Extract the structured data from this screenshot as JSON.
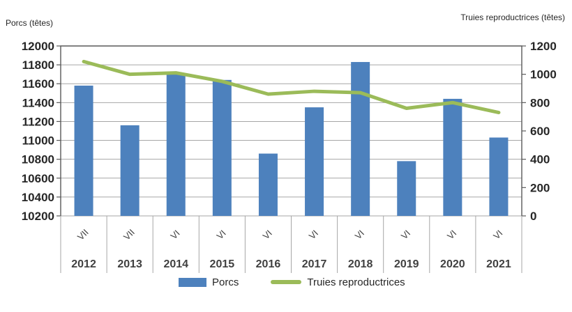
{
  "chart_data": {
    "type": "bar",
    "subtype": "bar-line-combo",
    "categories": [
      "2012",
      "2013",
      "2014",
      "2015",
      "2016",
      "2017",
      "2018",
      "2019",
      "2020",
      "2021"
    ],
    "category_sublabels": [
      "VII",
      "VII",
      "VI",
      "VI",
      "VI",
      "VI",
      "VI",
      "VI",
      "VI",
      "VI"
    ],
    "series": [
      {
        "name": "Porcs",
        "type": "bar",
        "axis": "left",
        "color": "#4d81bd",
        "values": [
          11580,
          11160,
          11700,
          11640,
          10860,
          11350,
          11830,
          10780,
          11440,
          11030
        ]
      },
      {
        "name": "Truies reproductrices",
        "type": "line",
        "axis": "right",
        "color": "#9bbb59",
        "values": [
          1090,
          1000,
          1010,
          950,
          860,
          880,
          870,
          760,
          800,
          730
        ]
      }
    ],
    "left_axis": {
      "title": "Porcs (têtes)",
      "min": 10200,
      "max": 12000,
      "step": 200,
      "ticks": [
        12000,
        11800,
        11600,
        11400,
        11200,
        11000,
        10800,
        10600,
        10400,
        10200
      ]
    },
    "right_axis": {
      "title": "Truies reproductrices (têtes)",
      "min": 0,
      "max": 1200,
      "step": 200,
      "ticks": [
        1200,
        1000,
        800,
        600,
        400,
        200,
        0
      ]
    },
    "legend": {
      "position": "bottom",
      "entries": [
        "Porcs",
        "Truies reproductrices"
      ]
    },
    "grid": true,
    "colors": {
      "bar": "#4d81bd",
      "line": "#9bbb59",
      "gridline": "#a6a6a6",
      "plot_border": "#595959",
      "tick_text": "#262626",
      "category_text": "#404040"
    }
  }
}
